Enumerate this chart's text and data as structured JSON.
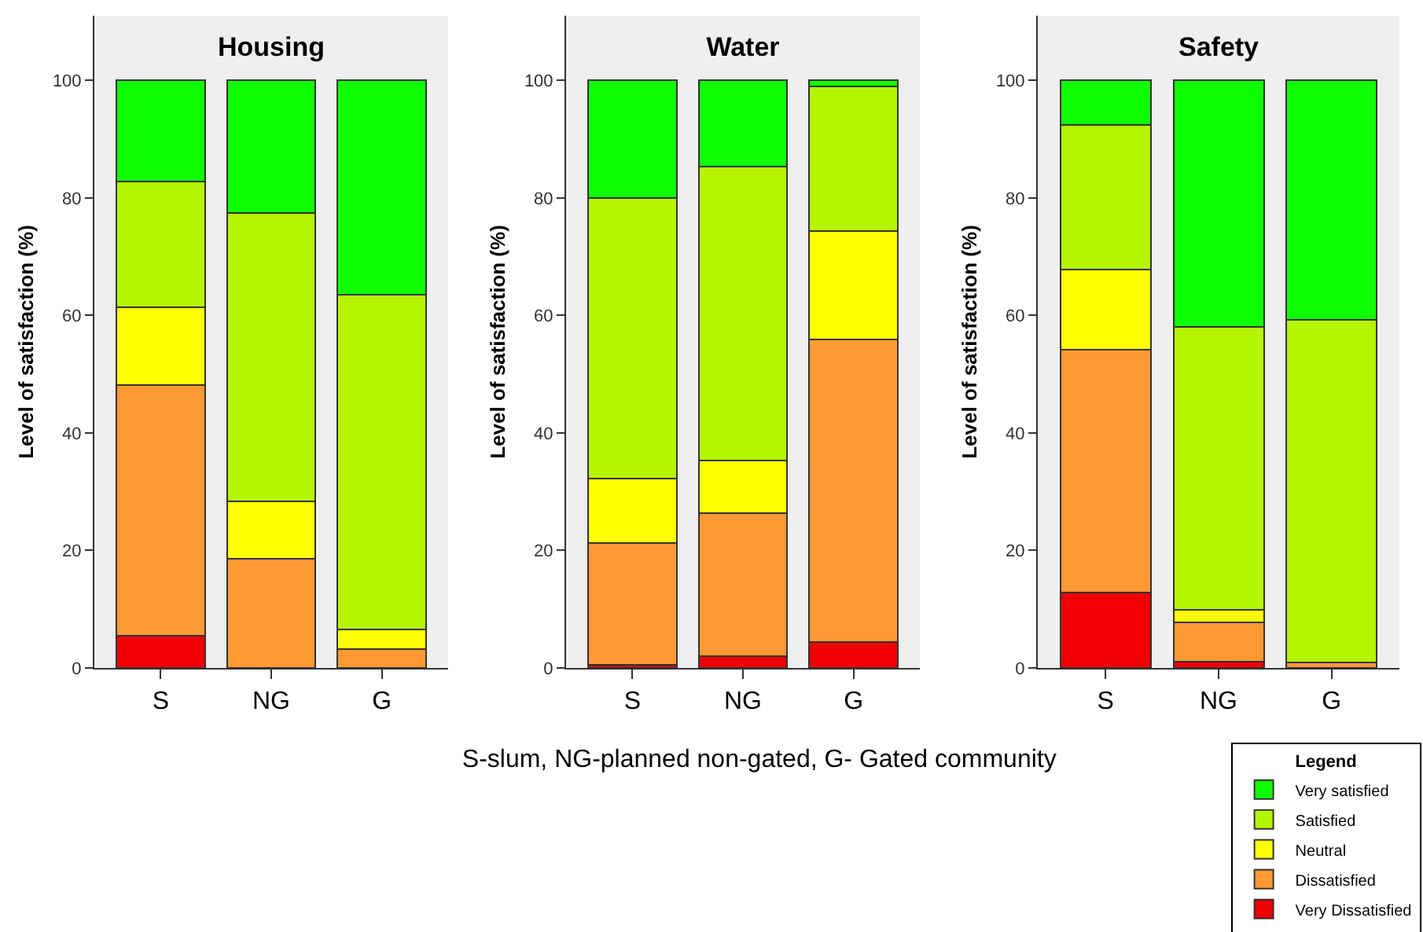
{
  "chart_data": [
    {
      "type": "bar",
      "title": "Housing",
      "ylabel": "Level of satisfaction (%)",
      "categories": [
        "S",
        "NG",
        "G"
      ],
      "stacked": true,
      "ylim": [
        0,
        111
      ],
      "yticks": [
        0,
        20,
        40,
        60,
        80,
        100
      ],
      "grid": false,
      "legend": false,
      "series": [
        {
          "color": "#f00000",
          "values": [
            5.5,
            0,
            0
          ]
        },
        {
          "color": "#ff9933",
          "values": [
            42.7,
            18.6,
            3.2
          ]
        },
        {
          "color": "#ffff00",
          "values": [
            13.2,
            9.8,
            3.3
          ]
        },
        {
          "color": "#b5f500",
          "values": [
            21.4,
            49.1,
            57
          ]
        },
        {
          "color": "#10ff00",
          "values": [
            17.2,
            22.5,
            36.5
          ]
        }
      ]
    },
    {
      "type": "bar",
      "title": "Water",
      "ylabel": "Level of satisfaction (%)",
      "categories": [
        "S",
        "NG",
        "G"
      ],
      "stacked": true,
      "ylim": [
        0,
        111
      ],
      "yticks": [
        0,
        20,
        40,
        60,
        80,
        100
      ],
      "grid": false,
      "legend": false,
      "annotations": [
        "S-slum, NG-planned non-gated, G- Gated community"
      ],
      "series": [
        {
          "color": "#f00000",
          "values": [
            0.5,
            2,
            4.4
          ]
        },
        {
          "color": "#ff9933",
          "values": [
            20.8,
            24.4,
            51.5
          ]
        },
        {
          "color": "#ffff00",
          "values": [
            10.9,
            8.9,
            18.4
          ]
        },
        {
          "color": "#b5f500",
          "values": [
            47.8,
            50,
            24.7
          ]
        },
        {
          "color": "#10ff00",
          "values": [
            20,
            14.7,
            1
          ]
        }
      ]
    },
    {
      "type": "bar",
      "title": "Safety",
      "ylabel": "Level of satisfaction (%)",
      "categories": [
        "S",
        "NG",
        "G"
      ],
      "stacked": true,
      "ylim": [
        0,
        111
      ],
      "yticks": [
        0,
        20,
        40,
        60,
        80,
        100
      ],
      "grid": false,
      "legend": "bottom right",
      "legend_title": "Legend",
      "series": [
        {
          "name": "Very Dissatisfied",
          "color": "#f00000",
          "values": [
            12.8,
            1.1,
            0
          ]
        },
        {
          "name": "Dissatisfied",
          "color": "#ff9933",
          "values": [
            41.4,
            6.7,
            1
          ]
        },
        {
          "name": "Neutral",
          "color": "#ffff00",
          "values": [
            13.6,
            2.1,
            0
          ]
        },
        {
          "name": "Satisfied",
          "color": "#b5f500",
          "values": [
            24.6,
            48.1,
            58.2
          ]
        },
        {
          "name": "Very satisfied",
          "color": "#10ff00",
          "values": [
            7.6,
            42,
            40.8
          ]
        }
      ]
    }
  ]
}
